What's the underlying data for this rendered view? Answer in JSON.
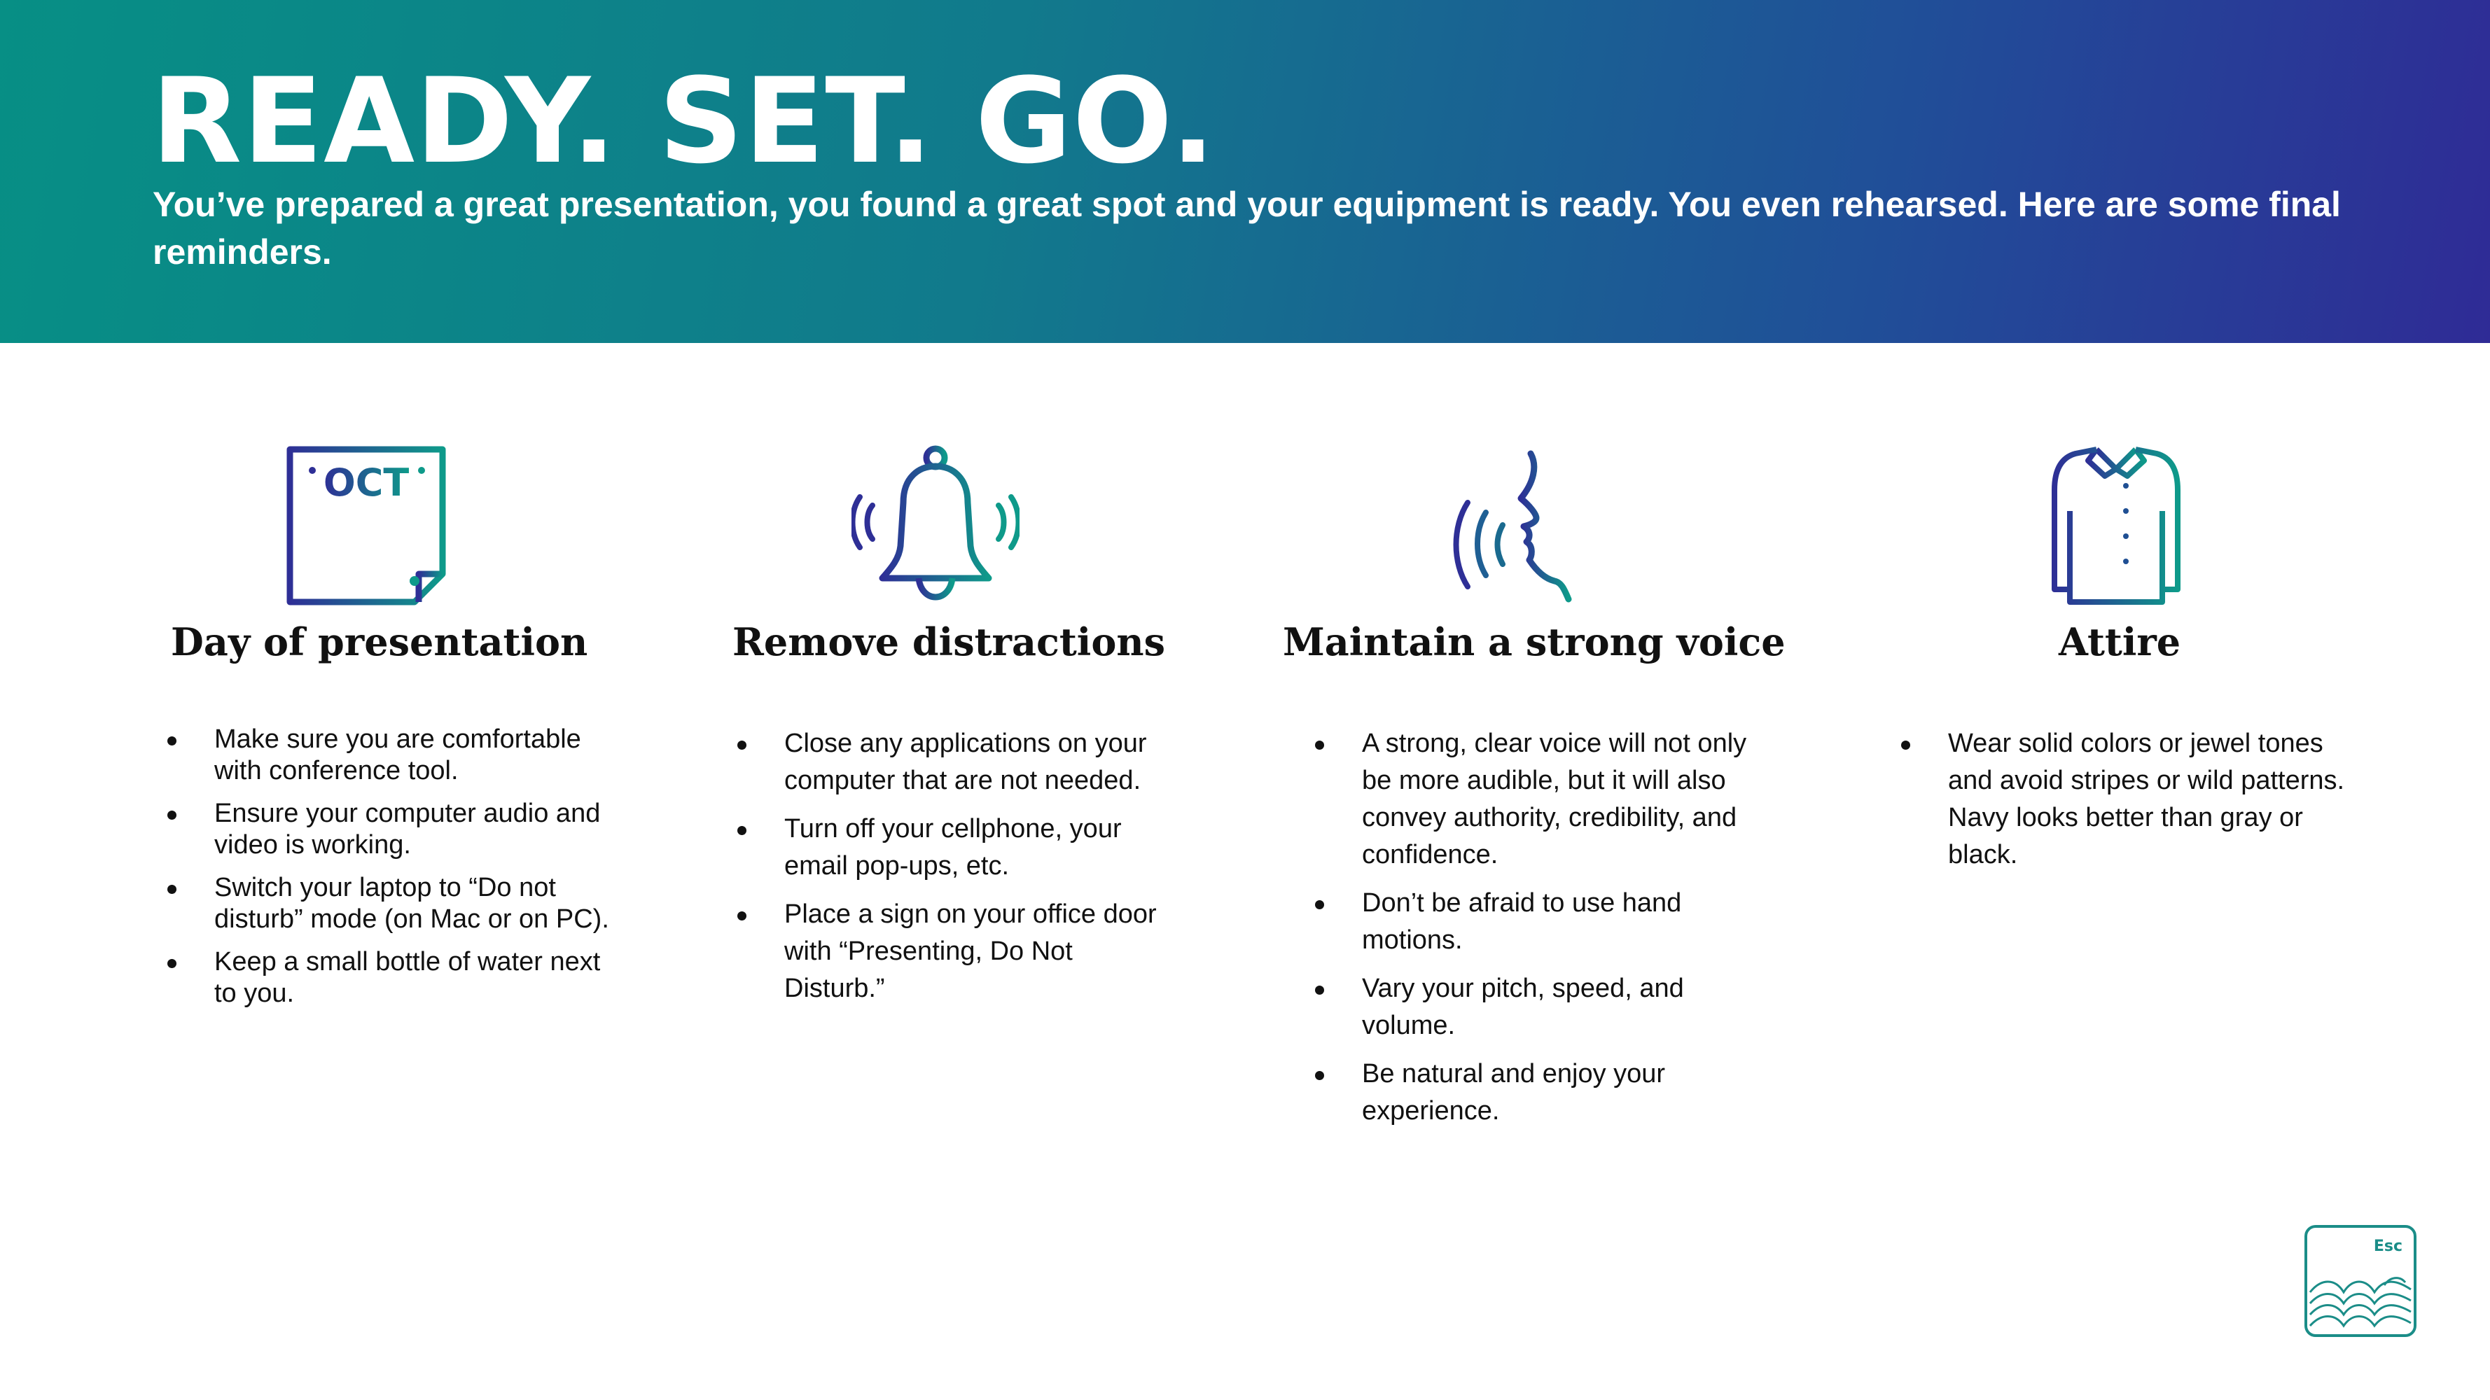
{
  "header": {
    "title": "READY. SET. GO.",
    "subtitle": "You’ve prepared a great presentation, you found a great spot and your equipment is ready. You even rehearsed. Here are some final reminders."
  },
  "colors": {
    "gradient_start": "#078f85",
    "gradient_end": "#2f2b96",
    "icon_teal": "#0e9a8a",
    "icon_indigo": "#2e2f96",
    "text": "#111111"
  },
  "columns": [
    {
      "icon": "calendar-icon",
      "calendar_label": "OCT",
      "title": "Day of presentation",
      "bullets": [
        "Make sure you are comfortable with conference tool.",
        "Ensure your computer audio and video is working.",
        "Switch your laptop to “Do not disturb” mode (on Mac or on PC).",
        "Keep a small bottle of water next to you."
      ]
    },
    {
      "icon": "bell-icon",
      "title": "Remove distractions",
      "bullets": [
        "Close any applications on your computer that are not needed.",
        "Turn off your cellphone, your email pop-ups, etc.",
        "Place a sign on your office door with “Presenting, Do Not Disturb.”"
      ]
    },
    {
      "icon": "speaking-face-icon",
      "title": "Maintain a strong voice",
      "bullets": [
        "A strong, clear voice will not only be more audible, but it will also convey authority, credibility, and confidence.",
        "Don’t be afraid to use hand motions.",
        "Vary your pitch, speed, and volume.",
        "Be natural and enjoy your experience."
      ]
    },
    {
      "icon": "shirt-icon",
      "title": "Attire",
      "bullets": [
        "Wear solid colors or jewel tones and avoid stripes or wild patterns. Navy looks better than gray or black."
      ]
    }
  ],
  "esc_logo": {
    "label": "Esc",
    "icon": "esc-waves-logo"
  }
}
